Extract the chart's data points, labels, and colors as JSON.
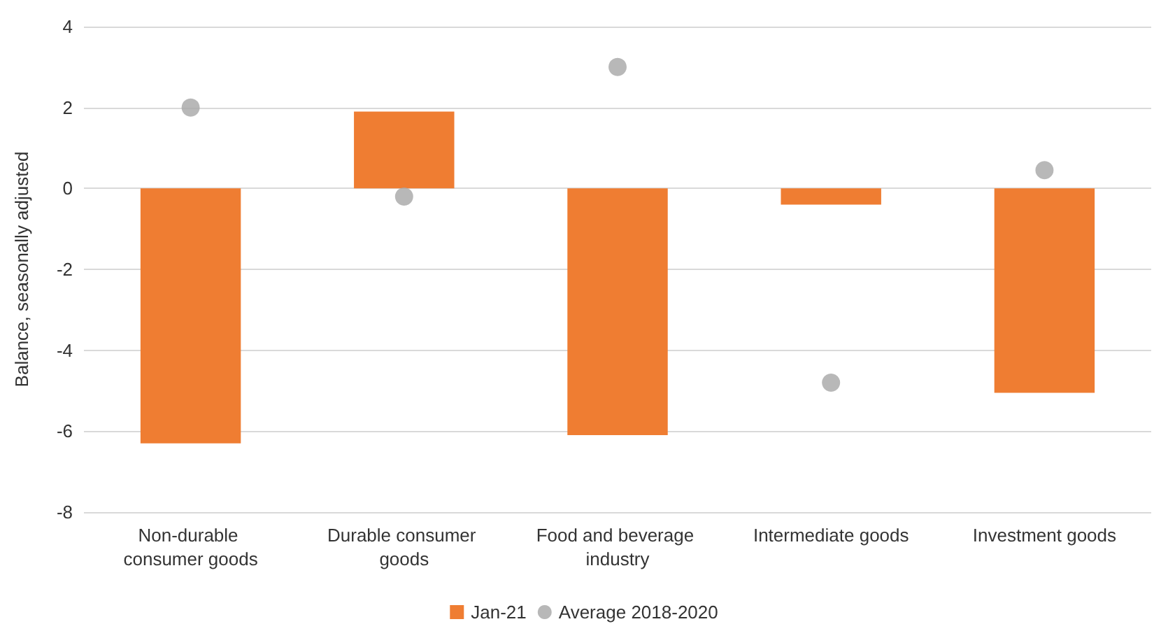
{
  "chart_data": {
    "type": "bar",
    "ylabel": "Balance, seasonally adjusted",
    "categories": [
      "Non-durable consumer goods",
      "Durable consumer goods",
      "Food and beverage industry",
      "Intermediate goods",
      "Investment goods"
    ],
    "series": [
      {
        "name": "Jan-21",
        "color": "#ef7d32",
        "values": [
          -6.3,
          1.9,
          -6.1,
          -0.4,
          -5.05
        ]
      },
      {
        "name": "Average 2018-2020",
        "type": "scatter",
        "color": "#a6a6a6",
        "marker": "circle",
        "values": [
          2.0,
          -0.2,
          3.0,
          -4.8,
          0.45
        ]
      }
    ],
    "ylim": [
      -8,
      4
    ],
    "yticks": [
      -8,
      -6,
      -4,
      -2,
      0,
      2,
      4
    ],
    "grid": "y",
    "legend": "bottom"
  }
}
